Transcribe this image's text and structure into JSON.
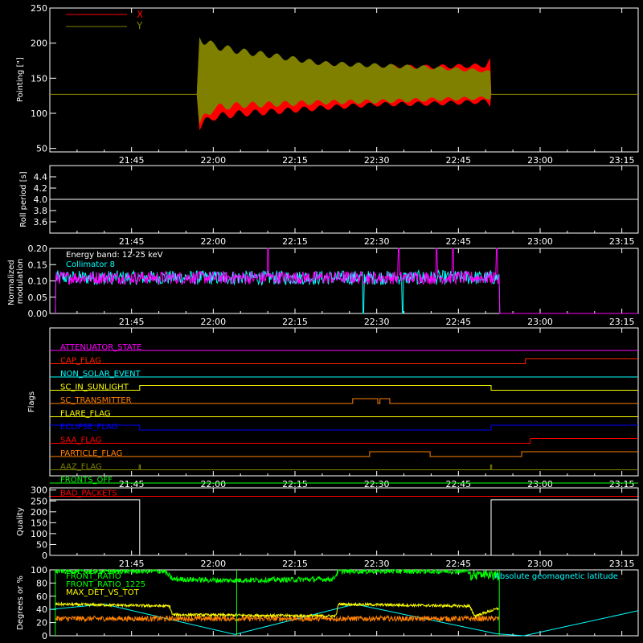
{
  "time_axis": {
    "tick_labels": [
      "21:45",
      "22:00",
      "22:15",
      "22:30",
      "22:45",
      "23:00",
      "23:15"
    ],
    "tick_minutes": [
      1305,
      1320,
      1335,
      1350,
      1365,
      1380,
      1395
    ],
    "range_minutes": [
      1290,
      1398
    ]
  },
  "chart_data": [
    {
      "type": "area",
      "ylabel": "Pointing [\"]",
      "ylim": [
        45,
        250
      ],
      "y_ticks": [
        50,
        100,
        150,
        200,
        250
      ],
      "legend": [
        "X",
        "Y"
      ],
      "legend_placement": "top-left",
      "series": [
        {
          "name": "X",
          "color": "#ff0000",
          "x": [
            1290,
            1317,
            1317.5,
            1320,
            1325,
            1330,
            1340,
            1350,
            1360,
            1370,
            1370.8,
            1371,
            1398
          ],
          "upper": [
            127,
            127,
            195,
            185,
            180,
            175,
            168,
            165,
            166,
            168,
            175,
            127,
            127
          ],
          "lower": [
            127,
            127,
            82,
            95,
            100,
            102,
            108,
            113,
            114,
            117,
            113,
            127,
            127
          ]
        },
        {
          "name": "Y",
          "color": "#808000",
          "x": [
            1290,
            1317,
            1317.5,
            1320,
            1325,
            1330,
            1340,
            1350,
            1360,
            1370,
            1370.8,
            1371,
            1398
          ],
          "upper": [
            127,
            127,
            208,
            196,
            188,
            183,
            171,
            168,
            165,
            160,
            158,
            127,
            127
          ],
          "lower": [
            127,
            127,
            85,
            108,
            112,
            113,
            116,
            117,
            120,
            122,
            122,
            127,
            127
          ]
        }
      ]
    },
    {
      "type": "line",
      "ylabel": "Roll period [s]",
      "ylim": [
        3.4,
        4.6
      ],
      "y_ticks": [
        "3.6",
        "3.8",
        "4.0",
        "4.2",
        "4.4"
      ],
      "series": [
        {
          "x": [
            1290,
            1398
          ],
          "y": [
            4.0,
            4.0
          ],
          "color": "#ffffff"
        }
      ]
    },
    {
      "type": "line",
      "ylabel": "Normalized modulation",
      "ylim": [
        0,
        0.2
      ],
      "y_ticks": [
        "0.00",
        "0.05",
        "0.10",
        "0.15",
        "0.20"
      ],
      "annotations": [
        "Energy band: 12-25 keV",
        "Collimator 8"
      ],
      "series": [
        {
          "name": "Collimator 8",
          "color": "#00ffff",
          "x": [
            1291,
            1291.1,
            1372.5,
            1372.6
          ],
          "y": [
            0,
            0.11,
            0.11,
            0
          ],
          "noise": 0.022,
          "dropouts": [
            1347.5,
            1354.8
          ]
        },
        {
          "name": "",
          "color": "#ff00ff",
          "x": [
            1291,
            1291.1,
            1372.5,
            1372.6
          ],
          "y": [
            0,
            0.11,
            0.11,
            0
          ],
          "noise": 0.02,
          "spikes": [
            1330,
            1354,
            1361,
            1364,
            1372
          ]
        }
      ]
    },
    {
      "type": "line",
      "ylabel": "Flags",
      "flags": [
        {
          "name": "ATTENUATOR_STATE",
          "color": "#ff00ff",
          "segments": [
            [
              1290,
              0
            ],
            [
              1398,
              0
            ]
          ]
        },
        {
          "name": "CAP_FLAG",
          "color": "#ff2000",
          "segments": [
            [
              1290,
              0
            ],
            [
              1377.3,
              0
            ],
            [
              1377.3,
              1
            ],
            [
              1398,
              1
            ]
          ]
        },
        {
          "name": "NON_SOLAR_EVENT",
          "color": "#00ffff",
          "segments": [
            [
              1290,
              0
            ],
            [
              1398,
              0
            ]
          ]
        },
        {
          "name": "SC_IN_SUNLIGHT",
          "color": "#ffff00",
          "segments": [
            [
              1290,
              0
            ],
            [
              1306.5,
              0
            ],
            [
              1306.5,
              1
            ],
            [
              1371,
              1
            ],
            [
              1371,
              0
            ],
            [
              1398,
              0
            ]
          ]
        },
        {
          "name": "SC_TRANSMITTER",
          "color": "#ff8000",
          "segments": [
            [
              1290,
              0
            ],
            [
              1345.6,
              0
            ],
            [
              1345.6,
              1
            ],
            [
              1350.2,
              1
            ],
            [
              1350.2,
              0
            ],
            [
              1350.6,
              0
            ],
            [
              1350.6,
              1
            ],
            [
              1352.4,
              1
            ],
            [
              1352.4,
              0
            ],
            [
              1398,
              0
            ]
          ]
        },
        {
          "name": "FLARE_FLAG",
          "color": "#ffff00",
          "segments": [
            [
              1290,
              0
            ],
            [
              1398,
              0
            ]
          ]
        },
        {
          "name": "ECLIPSE_FLAG",
          "color": "#0000ff",
          "segments": [
            [
              1290,
              1
            ],
            [
              1306.5,
              1
            ],
            [
              1306.5,
              0
            ],
            [
              1371,
              0
            ],
            [
              1371,
              1
            ],
            [
              1398,
              1
            ]
          ]
        },
        {
          "name": "SAA_FLAG",
          "color": "#ff0000",
          "segments": [
            [
              1290,
              0
            ],
            [
              1378.2,
              0
            ],
            [
              1378.2,
              1
            ],
            [
              1398,
              1
            ]
          ]
        },
        {
          "name": "PARTICLE_FLAG",
          "color": "#ff8000",
          "segments": [
            [
              1290,
              0
            ],
            [
              1348.7,
              0
            ],
            [
              1348.7,
              1
            ],
            [
              1359.8,
              1
            ],
            [
              1359.8,
              0
            ],
            [
              1376.6,
              0
            ],
            [
              1376.6,
              1
            ],
            [
              1398,
              1
            ]
          ]
        },
        {
          "name": "AAZ_FLAG",
          "color": "#808000",
          "segments": [
            [
              1290,
              0
            ],
            [
              1306.4,
              0
            ],
            [
              1306.4,
              1
            ],
            [
              1306.6,
              1
            ],
            [
              1306.6,
              0
            ],
            [
              1370.9,
              0
            ],
            [
              1370.9,
              1
            ],
            [
              1371.1,
              1
            ],
            [
              1371.1,
              0
            ],
            [
              1398,
              0
            ]
          ]
        },
        {
          "name": "FRONTS_OFF",
          "color": "#00ff00",
          "segments": [
            [
              1290,
              0
            ],
            [
              1398,
              0
            ]
          ]
        },
        {
          "name": "BAD_PACKETS",
          "color": "#ff0000",
          "segments": [
            [
              1290,
              0
            ],
            [
              1398,
              0
            ]
          ]
        }
      ]
    },
    {
      "type": "line",
      "ylabel": "Quality",
      "ylim": [
        0,
        310
      ],
      "y_ticks": [
        "0",
        "50",
        "100",
        "150",
        "200",
        "250",
        "300"
      ],
      "series": [
        {
          "color": "#ffffff",
          "x": [
            1290,
            1306.5,
            1306.5,
            1371,
            1371,
            1398
          ],
          "y": [
            255,
            255,
            0,
            0,
            255,
            255
          ]
        }
      ]
    },
    {
      "type": "line",
      "ylabel": "Degrees or %",
      "ylim": [
        0,
        100
      ],
      "y_ticks": [
        "0",
        "20",
        "40",
        "60",
        "80",
        "100"
      ],
      "annotations": [
        "Absolute geomagnetic latitude"
      ],
      "series": [
        {
          "name": "FRONT_RATIO",
          "color": "#00ff00",
          "x": [
            1291,
            1311,
            1312.5,
            1322,
            1342,
            1343,
            1398
          ],
          "y": [
            98,
            98,
            86,
            84,
            86,
            98,
            98
          ],
          "noise": 4,
          "segments_until": 1372.5,
          "dip_after": 1367
        },
        {
          "name": "FRONT_RATIO_1225",
          "color": "#00ff00",
          "x": [
            1291,
            1291.1,
            1324.3,
            1324.4,
            1372.5,
            1372.6
          ],
          "y": [
            0,
            100,
            100,
            0,
            100,
            0
          ],
          "vertical_lines": [
            1291,
            1324.3,
            1372.5
          ]
        },
        {
          "name": "MAX_DET_VS_TOT",
          "color": "#ffff00",
          "x": [
            1291,
            1312,
            1312.5,
            1342.5,
            1343,
            1367,
            1368,
            1372.5
          ],
          "y": [
            48,
            45,
            32,
            30,
            48,
            45,
            30,
            42
          ],
          "noise": 2
        },
        {
          "name": "",
          "color": "#ff8000",
          "x": [
            1291,
            1372.5
          ],
          "y": [
            26,
            26
          ],
          "noise": 4
        },
        {
          "name": "Absolute geomagnetic latitude",
          "color": "#00ffff",
          "x": [
            1290,
            1300,
            1324,
            1346,
            1372,
            1377,
            1398
          ],
          "y": [
            40,
            48,
            2,
            48,
            3,
            0,
            38
          ]
        }
      ]
    }
  ]
}
